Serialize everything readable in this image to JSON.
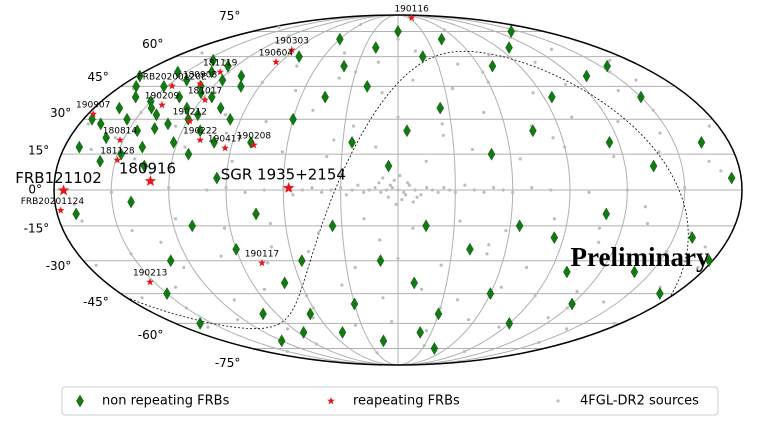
{
  "chart_data": {
    "type": "scatter",
    "projection": "mollweide",
    "xlim": [
      180,
      -180
    ],
    "ylim": [
      -90,
      90
    ],
    "xticks": [
      150,
      120,
      90,
      60,
      30,
      0,
      -30,
      -60,
      -90,
      -120,
      -150
    ],
    "yticks": [
      {
        "value": 75,
        "label": "75°"
      },
      {
        "value": 60,
        "label": "60°"
      },
      {
        "value": 45,
        "label": "45°"
      },
      {
        "value": 30,
        "label": "30°"
      },
      {
        "value": 15,
        "label": "15°"
      },
      {
        "value": 0,
        "label": "0°"
      },
      {
        "value": -15,
        "label": "-15°"
      },
      {
        "value": -30,
        "label": "-30°"
      },
      {
        "value": -45,
        "label": "-45°"
      },
      {
        "value": -60,
        "label": "-60°"
      },
      {
        "value": -75,
        "label": "-75°"
      }
    ],
    "grid": true,
    "legend": "bottom",
    "annotation": "Preliminary",
    "series": [
      {
        "name": "4FGL-DR2 sources",
        "color": "#bdbdbd",
        "marker": "dot",
        "x": [
          0,
          3,
          -3,
          6,
          -6,
          9,
          -9,
          12,
          -12,
          15,
          -15,
          18,
          -18,
          21,
          -21,
          24,
          -24,
          27,
          -27,
          30,
          -30,
          35,
          -35,
          40,
          -40,
          45,
          -45,
          50,
          -50,
          55,
          -55,
          60,
          -60,
          2,
          -2,
          5,
          -5,
          8,
          -8,
          1,
          -1,
          4,
          -4,
          10,
          -10,
          70,
          -70,
          80,
          -80,
          90,
          100,
          -100,
          120,
          -120,
          150,
          -150,
          170,
          120,
          60,
          0,
          -60,
          -120,
          165,
          135,
          105,
          75,
          45,
          15,
          -15,
          -45,
          -75,
          -105,
          -135,
          -165,
          170,
          145,
          115,
          90,
          65,
          40,
          10,
          -10,
          -35,
          -60,
          -85,
          -110,
          -140,
          -160,
          175,
          150,
          125,
          100,
          75,
          50,
          25,
          0,
          -25,
          -50,
          -75,
          -100,
          -125,
          -150,
          -175,
          165,
          140,
          115,
          88,
          62,
          38,
          12,
          -15,
          -40,
          -65,
          -90,
          -115,
          -140,
          -165,
          168,
          143,
          118,
          93,
          68,
          43,
          18,
          -8,
          -33,
          -58,
          -83,
          -108,
          -133,
          -158,
          175,
          150,
          125,
          100,
          75,
          50,
          25,
          0,
          -25,
          -50,
          -75,
          -100,
          -125,
          -150,
          -175,
          170,
          140,
          110,
          85,
          60,
          35,
          10,
          -15,
          -40,
          -65,
          -90,
          -115,
          -140,
          -165,
          160,
          125,
          95,
          65,
          35,
          5,
          -25,
          -55,
          -85,
          -115,
          -145,
          -175,
          150,
          90,
          30,
          -30,
          -90,
          -150,
          155,
          95,
          35,
          -25,
          -85,
          -145,
          130,
          70,
          10,
          -50,
          -110,
          -170,
          120,
          30,
          -60,
          -150,
          150,
          60,
          -30,
          -120,
          130,
          -130,
          170,
          -170
        ],
        "y": [
          0,
          1,
          -1,
          0,
          2,
          -1,
          0,
          1,
          -2,
          0,
          1,
          -1,
          0,
          2,
          -1,
          0,
          1,
          -2,
          0,
          1,
          -1,
          0,
          2,
          -1,
          0,
          1,
          -1,
          0,
          1,
          -2,
          0,
          1,
          -1,
          4,
          -4,
          -3,
          3,
          5,
          -5,
          -6,
          6,
          2,
          -2,
          3,
          -3,
          0,
          1,
          -1,
          0,
          1,
          0,
          -1,
          1,
          0,
          -1,
          1,
          78,
          72,
          80,
          70,
          76,
          71,
          62,
          58,
          64,
          55,
          62,
          57,
          63,
          56,
          61,
          57,
          64,
          58,
          44,
          48,
          42,
          47,
          43,
          49,
          42,
          48,
          44,
          47,
          42,
          46,
          43,
          48,
          28,
          33,
          27,
          32,
          29,
          34,
          27,
          31,
          28,
          33,
          27,
          31,
          29,
          34,
          27,
          17,
          13,
          18,
          12,
          16,
          14,
          18,
          12,
          17,
          13,
          18,
          14,
          16,
          12,
          -13,
          -17,
          -12,
          -16,
          -14,
          -18,
          -12,
          -16,
          -13,
          -17,
          -12,
          -16,
          -14,
          -18,
          -32,
          -27,
          -33,
          -28,
          -31,
          -26,
          -33,
          -29,
          -32,
          -27,
          -33,
          -28,
          -31,
          -26,
          -33,
          -47,
          -42,
          -48,
          -43,
          -46,
          -41,
          -47,
          -43,
          -48,
          -42,
          -46,
          -44,
          -49,
          -42,
          -62,
          -58,
          -63,
          -57,
          -61,
          -59,
          -64,
          -58,
          -62,
          -57,
          -63,
          -60,
          -77,
          -72,
          -78,
          -73,
          -77,
          -71,
          22,
          24,
          21,
          23,
          22,
          24,
          -22,
          -24,
          -21,
          -23,
          -22,
          -24,
          52,
          52,
          52,
          52,
          -52,
          -52,
          -52,
          -52,
          7,
          -7,
          -6,
          8
        ]
      },
      {
        "name": "non repeating FRBs",
        "color": "#137a13",
        "marker": "diamond",
        "x": [
          120,
          125,
          130,
          135,
          140,
          145,
          150,
          155,
          160,
          165,
          110,
          115,
          118,
          122,
          128,
          132,
          138,
          142,
          148,
          152,
          158,
          162,
          168,
          172,
          105,
          108,
          112,
          126,
          134,
          144,
          100,
          102,
          96,
          170,
          175,
          146,
          136,
          124,
          116,
          156,
          80,
          60,
          40,
          20,
          0,
          -20,
          -45,
          -70,
          -100,
          -130,
          -150,
          -165,
          -175,
          -160,
          -140,
          -120,
          -90,
          -60,
          -30,
          -10,
          10,
          30,
          50,
          70,
          90,
          110,
          130,
          150,
          170,
          160,
          100,
          75,
          60,
          45,
          25,
          -5,
          -25,
          -50,
          -75,
          -95,
          -115,
          -135,
          -155,
          -85,
          -65,
          -40,
          -15,
          5,
          35,
          55,
          85,
          120,
          -170,
          -110,
          -45,
          20,
          -140,
          140,
          95,
          80,
          65,
          -20,
          -100,
          15,
          178,
          -178
        ],
        "y": [
          30,
          35,
          28,
          40,
          32,
          25,
          38,
          30,
          22,
          35,
          25,
          40,
          48,
          20,
          45,
          52,
          18,
          48,
          15,
          45,
          12,
          40,
          28,
          18,
          35,
          50,
          15,
          55,
          10,
          58,
          20,
          45,
          30,
          45,
          30,
          35,
          26,
          42,
          32,
          52,
          60,
          70,
          55,
          65,
          75,
          60,
          70,
          55,
          65,
          50,
          40,
          20,
          5,
          -20,
          -35,
          -50,
          -60,
          -45,
          -55,
          -40,
          -30,
          -50,
          -65,
          -40,
          -25,
          -15,
          -30,
          -45,
          -10,
          -60,
          -55,
          -10,
          30,
          40,
          20,
          25,
          35,
          15,
          25,
          40,
          20,
          10,
          55,
          -20,
          -15,
          -25,
          -15,
          10,
          -15,
          -30,
          -65,
          -70,
          -45,
          -10,
          -75,
          45,
          75,
          -5,
          5,
          20,
          -55,
          -65,
          -35,
          -70,
          50,
          -30
        ]
      },
      {
        "name": "reapeating FRBs",
        "color": "#e8161b",
        "marker": "star",
        "x": [
          -40,
          92.6,
          93.6,
          126,
          130.3,
          147,
          141.3,
          117.8,
          118.5,
          93.2,
          78,
          108,
          177,
          151.8,
          149,
          129.7,
          175,
          177.7,
          57.2,
          78.3,
          152.5
        ],
        "y": [
          86,
          63.6,
          57.1,
          52,
          46.2,
          45.2,
          36.4,
          38.7,
          29.2,
          17.6,
          18.9,
          21,
          32.3,
          21,
          12.5,
          3.7,
          -0.2,
          -8.5,
          0.8,
          -31,
          -39.6
        ],
        "labels": [
          "190116",
          "190303",
          "190604",
          "181119",
          "180908",
          "FRB20200120E",
          "190209",
          "181017",
          "190212",
          "190417",
          "190208",
          "190222",
          "190907",
          "180814",
          "181128",
          "180916",
          "FRB121102",
          "FRB20201124",
          "SGR 1935+2154",
          "190117",
          "190213"
        ]
      }
    ]
  }
}
